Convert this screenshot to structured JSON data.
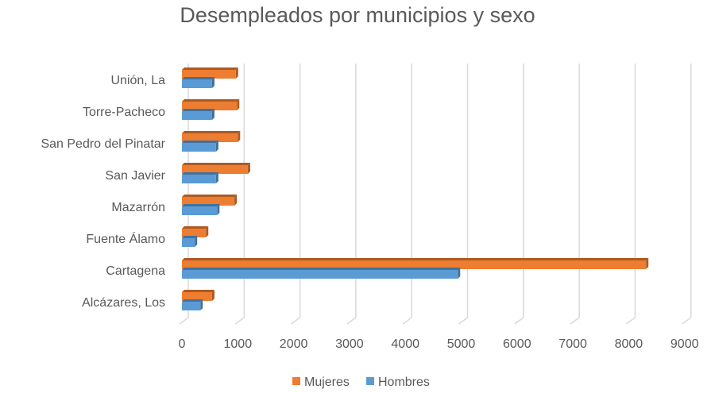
{
  "chart_data": {
    "type": "bar",
    "orientation": "horizontal",
    "title": "Desempleados por municipios y sexo",
    "xlabel": "",
    "ylabel": "",
    "categories": [
      "Unión, La",
      "Torre-Pacheco",
      "San Pedro del Pinatar",
      "San Javier",
      "Mazarrón",
      "Fuente Álamo",
      "Cartagena",
      "Alcázares, Los"
    ],
    "series": [
      {
        "name": "Mujeres",
        "color": "#ED7D31",
        "values": [
          965,
          985,
          1000,
          1180,
          940,
          430,
          8310,
          540
        ]
      },
      {
        "name": "Hombres",
        "color": "#5B9BD5",
        "values": [
          540,
          540,
          610,
          610,
          630,
          230,
          4940,
          330
        ]
      }
    ],
    "xlim": [
      0,
      9000
    ],
    "xticks": [
      "0",
      "1000",
      "2000",
      "3000",
      "4000",
      "5000",
      "6000",
      "7000",
      "8000",
      "9000"
    ],
    "grid": true,
    "legend": "bottom"
  }
}
